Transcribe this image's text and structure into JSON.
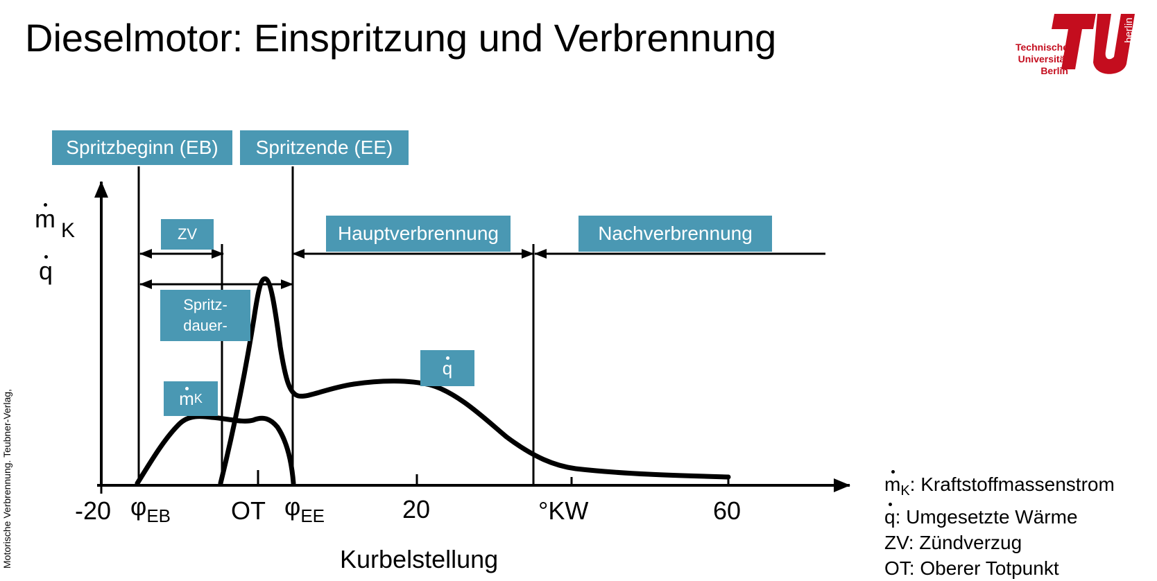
{
  "slide": {
    "title": "Dieselmotor: Einspritzung und Verbrennung",
    "side_credit": "Motorische Verbrennung. Teubner-Verlag,"
  },
  "logo": {
    "line1": "Technische",
    "line2": "Universität",
    "line3": "Berlin",
    "vertical": "berlin",
    "color": "#c40d1e"
  },
  "colors": {
    "box": "#4a98b3",
    "ink": "#000000"
  },
  "diagram": {
    "boxes": {
      "eb": "Spritzbeginn (EB)",
      "ee": "Spritzende (EE)",
      "zv": "ZV",
      "haupt": "Hauptverbrennung",
      "nach": "Nachverbrennung",
      "dauer_1": "Spritz-",
      "dauer_2": "dauer-",
      "q": "q",
      "mk_main": "m",
      "mk_sub": "K"
    },
    "y_axis": {
      "m": "m",
      "m_sub": "K",
      "q": "q"
    },
    "x_ticks": {
      "t1": "-20",
      "phi_eb": "φ",
      "phi_eb_sub": "EB",
      "ot": "OT",
      "phi_ee": "φ",
      "phi_ee_sub": "EE",
      "t20": "20",
      "kw": "°KW",
      "t60": "60"
    },
    "x_label": "Kurbelstellung"
  },
  "legend": {
    "mk_sym": "m",
    "mk_sub": "K",
    "mk_text": ": Kraftstoffmassenstrom",
    "q_sym": "q",
    "q_text": ": Umgesetzte Wärme",
    "zv": "ZV: Zündverzug",
    "ot": "OT: Oberer Totpunkt"
  }
}
